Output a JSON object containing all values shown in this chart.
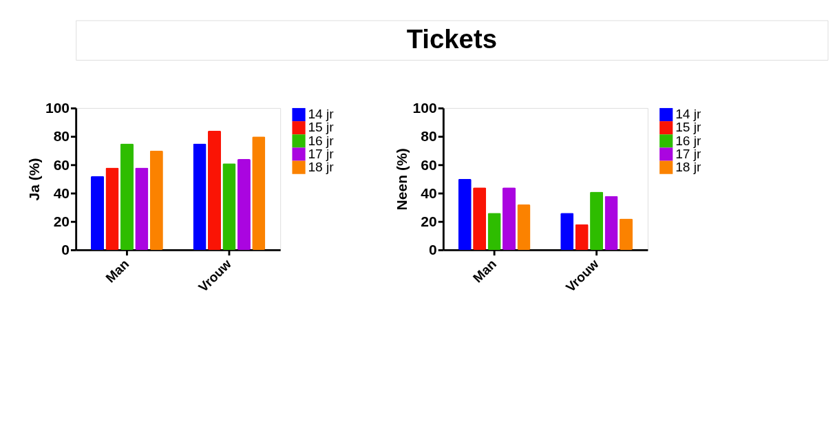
{
  "chart_data": [
    {
      "type": "other",
      "title": "Tickets"
    },
    {
      "type": "bar",
      "ylabel": "Ja (%)",
      "categories": [
        "Man",
        "Vrouw"
      ],
      "ylim": [
        0,
        100
      ],
      "yticks": [
        0,
        20,
        40,
        60,
        80,
        100
      ],
      "grid": false,
      "legend": "top right",
      "series": [
        {
          "name": "14 jr",
          "color": "#0000ff",
          "values": [
            52,
            75
          ]
        },
        {
          "name": "15 jr",
          "color": "#fa1405",
          "values": [
            58,
            84
          ]
        },
        {
          "name": "16 jr",
          "color": "#2ebd00",
          "values": [
            75,
            61
          ]
        },
        {
          "name": "17 jr",
          "color": "#aa05e0",
          "values": [
            58,
            64
          ]
        },
        {
          "name": "18 jr",
          "color": "#fb8200",
          "values": [
            70,
            80
          ]
        }
      ]
    },
    {
      "type": "bar",
      "ylabel": "Neen (%)",
      "categories": [
        "Man",
        "Vrouw"
      ],
      "ylim": [
        0,
        100
      ],
      "yticks": [
        0,
        20,
        40,
        60,
        80,
        100
      ],
      "grid": false,
      "legend": "top right",
      "series": [
        {
          "name": "14 jr",
          "color": "#0000ff",
          "values": [
            50,
            26
          ]
        },
        {
          "name": "15 jr",
          "color": "#fa1405",
          "values": [
            44,
            18
          ]
        },
        {
          "name": "16 jr",
          "color": "#2ebd00",
          "values": [
            26,
            41
          ]
        },
        {
          "name": "17 jr",
          "color": "#aa05e0",
          "values": [
            44,
            38
          ]
        },
        {
          "name": "18 jr",
          "color": "#fb8200",
          "values": [
            32,
            22
          ]
        }
      ]
    }
  ]
}
